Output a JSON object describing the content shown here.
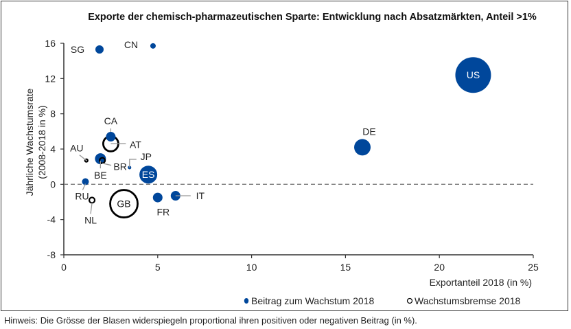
{
  "chart_data": {
    "type": "scatter",
    "subtype": "bubble",
    "title": "Exporte der chemisch-pharmazeutischen Sparte: Entwicklung nach Absatzmärkten, Anteil >1%",
    "xlabel": "Exportanteil 2018 (in %)",
    "ylabel": "Jährliche Wachstumsrate (2008-2018 in %)",
    "ylabel_lines": [
      "Jährliche Wachstumsrate",
      "(2008-2018 in %)"
    ],
    "xlim": [
      0,
      25
    ],
    "ylim": [
      -8,
      16
    ],
    "xticks": [
      0,
      5,
      10,
      15,
      20,
      25
    ],
    "yticks": [
      -8,
      -4,
      0,
      4,
      8,
      12,
      16
    ],
    "grid": false,
    "reference_line": {
      "y": 0,
      "style": "dashed"
    },
    "legend_position": "bottom-right",
    "legend": [
      {
        "name": "Beitrag zum Wachstum 2018",
        "style": "filled",
        "color": "#00479b"
      },
      {
        "name": "Wachstumsbremse 2018",
        "style": "hollow",
        "color": "#000000"
      }
    ],
    "points": [
      {
        "label": "US",
        "x": 21.8,
        "y": 12.4,
        "size": 26,
        "type": "filled",
        "label_inside": true
      },
      {
        "label": "SG",
        "x": 1.9,
        "y": 15.3,
        "size": 6,
        "type": "filled"
      },
      {
        "label": "CN",
        "x": 4.75,
        "y": 15.7,
        "size": 4,
        "type": "filled"
      },
      {
        "label": "DE",
        "x": 15.9,
        "y": 4.2,
        "size": 12,
        "type": "filled"
      },
      {
        "label": "CA",
        "x": 2.5,
        "y": 5.4,
        "size": 7,
        "type": "filled"
      },
      {
        "label": "AT",
        "x": 2.5,
        "y": 4.6,
        "size": 11,
        "type": "hollow"
      },
      {
        "label": "AU",
        "x": 1.2,
        "y": 2.7,
        "size": 2,
        "type": "hollow"
      },
      {
        "label": "BE",
        "x": 1.95,
        "y": 2.9,
        "size": 8,
        "type": "filled"
      },
      {
        "label": "BR",
        "x": 2.05,
        "y": 2.7,
        "size": 4,
        "type": "hollow"
      },
      {
        "label": "JP",
        "x": 3.5,
        "y": 1.9,
        "size": 2.5,
        "type": "filled"
      },
      {
        "label": "ES",
        "x": 4.5,
        "y": 1.1,
        "size": 13,
        "type": "filled",
        "label_inside": true
      },
      {
        "label": "RU",
        "x": 1.15,
        "y": 0.3,
        "size": 5,
        "type": "filled"
      },
      {
        "label": "NL",
        "x": 1.5,
        "y": -1.8,
        "size": 4,
        "type": "hollow"
      },
      {
        "label": "GB",
        "x": 3.2,
        "y": -2.2,
        "size": 20,
        "type": "hollow",
        "label_inside": true
      },
      {
        "label": "FR",
        "x": 5.0,
        "y": -1.5,
        "size": 7,
        "type": "filled"
      },
      {
        "label": "IT",
        "x": 5.95,
        "y": -1.3,
        "size": 7,
        "type": "filled"
      }
    ]
  },
  "note": "Hinweis: Die Grösse der Blasen widerspiegeln proportional ihren positiven oder negativen Beitrag (in %)."
}
